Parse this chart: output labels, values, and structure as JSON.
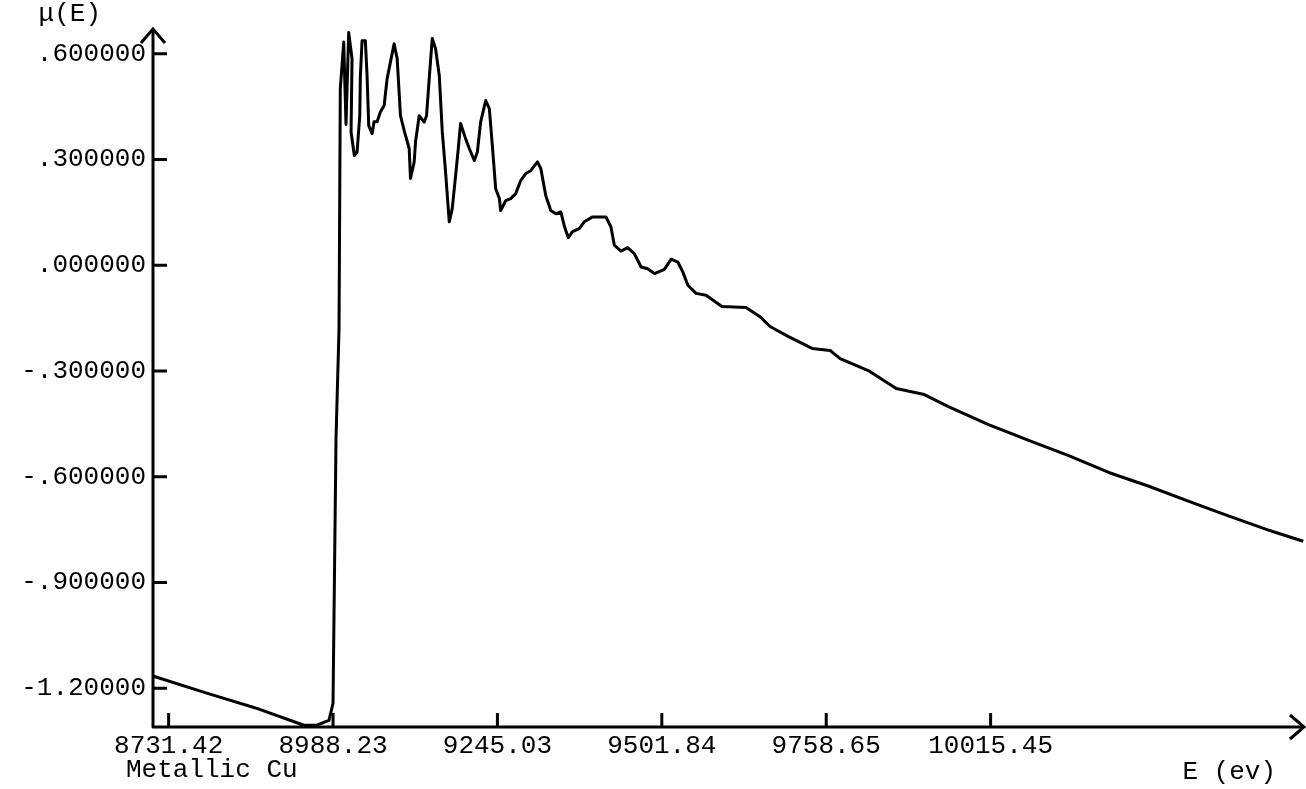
{
  "chart_data": {
    "type": "line",
    "xlabel": "E (ev)",
    "ylabel": "μ(E)",
    "annotations": [
      "Metallic Cu"
    ],
    "xlim": [
      8707,
      10505
    ],
    "ylim": [
      -1.31,
      0.67
    ],
    "xticks": [
      8731.42,
      8988.23,
      9245.03,
      9501.84,
      9758.65,
      10015.45
    ],
    "yticks": [
      {
        "value": -1.2,
        "label": "-1.20000"
      },
      {
        "value": -0.9,
        "label": "-.900000"
      },
      {
        "value": -0.6,
        "label": "-.600000"
      },
      {
        "value": -0.3,
        "label": "-.300000"
      },
      {
        "value": 0,
        "label": ".000000"
      },
      {
        "value": 0.3,
        "label": ".300000"
      },
      {
        "value": 0.6,
        "label": ".600000"
      }
    ],
    "series": [
      {
        "color": "#000000",
        "x": [
          8707.9,
          8790.9,
          8869.2,
          8942.8,
          8963.1,
          8981.9,
          8988.2,
          8992.9,
          8997.6,
          8999.6,
          9004.9,
          9008.5,
          9012.7,
          9017.9,
          9016.4,
          9021.5,
          9025.8,
          9030.0,
          9030.9,
          9033.6,
          9038.7,
          9041.4,
          9044.0,
          9049.2,
          9052.3,
          9057.1,
          9062.3,
          9068.1,
          9072.7,
          9077.9,
          9083.7,
          9088.4,
          9093.6,
          9099.4,
          9107.2,
          9109.2,
          9115.0,
          9117.1,
          9122.8,
          9130.7,
          9134.3,
          9138.5,
          9143.2,
          9148.4,
          9154.2,
          9158.9,
          9164.0,
          9169.8,
          9174.5,
          9179.7,
          9183.9,
          9187.5,
          9195.3,
          9201.1,
          9208.9,
          9213.7,
          9218.8,
          9226.7,
          9232.4,
          9237.1,
          9242.3,
          9248.1,
          9250.1,
          9258.0,
          9265.8,
          9273.6,
          9281.4,
          9289.3,
          9297.1,
          9307.6,
          9312.8,
          9320.6,
          9328.4,
          9336.3,
          9344.1,
          9349.4,
          9355.7,
          9362.4,
          9372.9,
          9380.7,
          9393.7,
          9414.5,
          9422.3,
          9427.6,
          9438.0,
          9448.5,
          9458.9,
          9469.4,
          9479.8,
          9490.3,
          9505.9,
          9516.3,
          9526.8,
          9534.6,
          9542.5,
          9555.4,
          9571.1,
          9595.7,
          9633.3,
          9655.2,
          9670.8,
          9699.0,
          9736.6,
          9764.8,
          9780.4,
          9824.3,
          9868.1,
          9911.9,
          9949.5,
          10012.1,
          10074.8,
          10137.4,
          10200.0,
          10262.7,
          10325.3,
          10388.0,
          10450.6,
          10503.8
        ],
        "values": [
          -1.166,
          -1.214,
          -1.257,
          -1.305,
          -1.305,
          -1.291,
          -1.243,
          -0.491,
          -0.18,
          0.501,
          0.633,
          0.399,
          0.66,
          0.586,
          0.378,
          0.311,
          0.321,
          0.424,
          0.534,
          0.637,
          0.637,
          0.538,
          0.396,
          0.373,
          0.407,
          0.407,
          0.435,
          0.453,
          0.529,
          0.576,
          0.628,
          0.586,
          0.424,
          0.382,
          0.331,
          0.246,
          0.293,
          0.35,
          0.424,
          0.406,
          0.424,
          0.529,
          0.643,
          0.614,
          0.538,
          0.378,
          0.265,
          0.123,
          0.161,
          0.254,
          0.331,
          0.402,
          0.359,
          0.331,
          0.297,
          0.321,
          0.406,
          0.467,
          0.444,
          0.339,
          0.217,
          0.189,
          0.155,
          0.183,
          0.189,
          0.203,
          0.24,
          0.26,
          0.268,
          0.293,
          0.274,
          0.197,
          0.155,
          0.146,
          0.151,
          0.112,
          0.078,
          0.095,
          0.104,
          0.123,
          0.137,
          0.137,
          0.109,
          0.057,
          0.04,
          0.05,
          0.033,
          -0.005,
          -0.01,
          -0.024,
          -0.012,
          0.017,
          0.009,
          -0.019,
          -0.057,
          -0.08,
          -0.085,
          -0.117,
          -0.12,
          -0.146,
          -0.174,
          -0.202,
          -0.236,
          -0.242,
          -0.265,
          -0.299,
          -0.35,
          -0.367,
          -0.401,
          -0.452,
          -0.497,
          -0.54,
          -0.588,
          -0.627,
          -0.67,
          -0.712,
          -0.752,
          -0.783
        ]
      }
    ]
  }
}
